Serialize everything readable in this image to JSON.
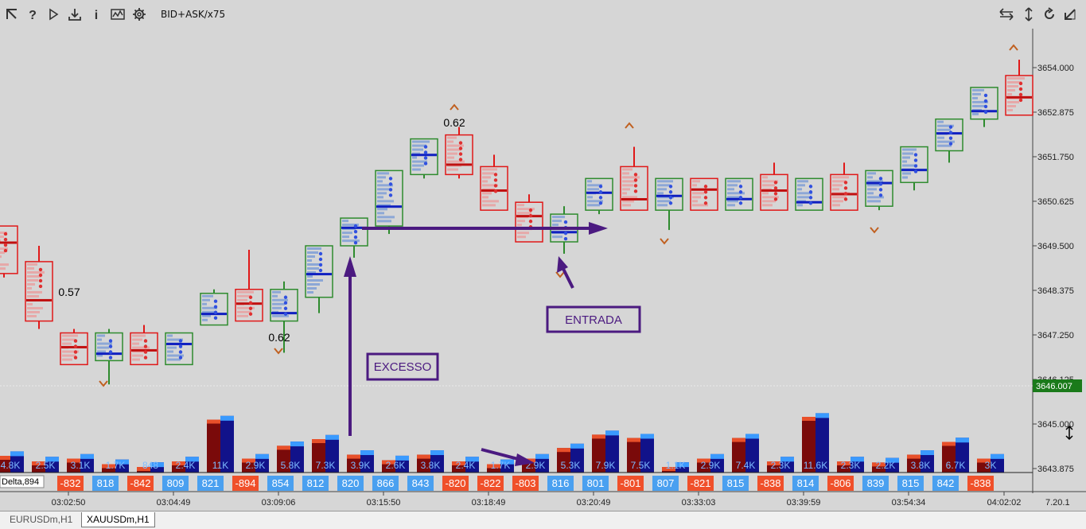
{
  "toolbar": {
    "title": "BID+ASK/x75",
    "icons": [
      "cursor-arrow-icon",
      "help-icon",
      "play-icon",
      "download-icon",
      "info-icon",
      "chart-icon",
      "gear-icon"
    ],
    "right_icons": [
      "horizontal-arrows-icon",
      "vertical-arrows-icon",
      "refresh-icon",
      "diagonal-arrow-icon"
    ]
  },
  "price_axis": {
    "labels": [
      "3654.000",
      "3652.875",
      "3651.750",
      "3650.625",
      "3649.500",
      "3648.375",
      "3647.250",
      "3646.125",
      "3645.000",
      "3643.875"
    ],
    "current_price": "3646.007",
    "current_color": "#1a7a1a"
  },
  "time_axis": {
    "labels": [
      "03:02:50",
      "03:04:49",
      "03:09:06",
      "03:15:50",
      "03:18:49",
      "03:20:49",
      "03:33:03",
      "03:39:59",
      "03:54:34",
      "04:02:02"
    ],
    "right_label": "7.20.1"
  },
  "indicator": {
    "label": "Delta,894"
  },
  "annotations": {
    "candle_labels": [
      "0.57",
      "0.62",
      "0.62"
    ],
    "boxes": [
      "EXCESSO",
      "ENTRADA"
    ]
  },
  "chart_data": {
    "type": "candlestick-footprint",
    "y_range": [
      3643.5,
      3655.0
    ],
    "candles": [
      {
        "open": 3650.0,
        "close": 3648.8,
        "high": 3650.0,
        "low": 3648.7,
        "dir": "down"
      },
      {
        "open": 3649.1,
        "close": 3647.6,
        "high": 3649.5,
        "low": 3647.4,
        "dir": "down"
      },
      {
        "open": 3647.3,
        "close": 3646.5,
        "high": 3647.4,
        "low": 3646.5,
        "dir": "down"
      },
      {
        "open": 3646.6,
        "close": 3647.3,
        "high": 3647.4,
        "low": 3646.0,
        "dir": "up"
      },
      {
        "open": 3647.3,
        "close": 3646.5,
        "high": 3647.5,
        "low": 3646.5,
        "dir": "down"
      },
      {
        "open": 3646.5,
        "close": 3647.3,
        "high": 3647.3,
        "low": 3646.5,
        "dir": "up"
      },
      {
        "open": 3647.5,
        "close": 3648.3,
        "high": 3648.4,
        "low": 3647.5,
        "dir": "up"
      },
      {
        "open": 3648.4,
        "close": 3647.6,
        "high": 3649.4,
        "low": 3647.6,
        "dir": "down"
      },
      {
        "open": 3647.6,
        "close": 3648.4,
        "high": 3648.6,
        "low": 3646.8,
        "dir": "up"
      },
      {
        "open": 3648.2,
        "close": 3649.5,
        "high": 3649.5,
        "low": 3647.8,
        "dir": "up"
      },
      {
        "open": 3649.5,
        "close": 3650.2,
        "high": 3650.2,
        "low": 3649.2,
        "dir": "up"
      },
      {
        "open": 3650.0,
        "close": 3651.4,
        "high": 3651.4,
        "low": 3649.8,
        "dir": "up"
      },
      {
        "open": 3651.3,
        "close": 3652.2,
        "high": 3652.2,
        "low": 3651.2,
        "dir": "up"
      },
      {
        "open": 3652.3,
        "close": 3651.3,
        "high": 3652.5,
        "low": 3651.2,
        "dir": "down"
      },
      {
        "open": 3651.5,
        "close": 3650.4,
        "high": 3651.8,
        "low": 3650.4,
        "dir": "down"
      },
      {
        "open": 3650.6,
        "close": 3649.6,
        "high": 3650.8,
        "low": 3649.6,
        "dir": "down"
      },
      {
        "open": 3649.6,
        "close": 3650.3,
        "high": 3650.5,
        "low": 3649.3,
        "dir": "up"
      },
      {
        "open": 3650.4,
        "close": 3651.2,
        "high": 3651.2,
        "low": 3650.3,
        "dir": "up"
      },
      {
        "open": 3651.5,
        "close": 3650.4,
        "high": 3652.0,
        "low": 3650.4,
        "dir": "down"
      },
      {
        "open": 3650.4,
        "close": 3651.2,
        "high": 3651.2,
        "low": 3649.9,
        "dir": "up"
      },
      {
        "open": 3651.2,
        "close": 3650.4,
        "high": 3651.2,
        "low": 3650.4,
        "dir": "down"
      },
      {
        "open": 3650.4,
        "close": 3651.2,
        "high": 3651.2,
        "low": 3650.4,
        "dir": "up"
      },
      {
        "open": 3651.3,
        "close": 3650.4,
        "high": 3651.6,
        "low": 3650.4,
        "dir": "down"
      },
      {
        "open": 3650.4,
        "close": 3651.2,
        "high": 3651.2,
        "low": 3650.4,
        "dir": "up"
      },
      {
        "open": 3651.3,
        "close": 3650.4,
        "high": 3651.6,
        "low": 3650.4,
        "dir": "down"
      },
      {
        "open": 3650.5,
        "close": 3651.4,
        "high": 3651.4,
        "low": 3650.4,
        "dir": "up"
      },
      {
        "open": 3651.1,
        "close": 3652.0,
        "high": 3652.0,
        "low": 3650.9,
        "dir": "up"
      },
      {
        "open": 3651.9,
        "close": 3652.7,
        "high": 3652.7,
        "low": 3651.6,
        "dir": "up"
      },
      {
        "open": 3652.7,
        "close": 3653.5,
        "high": 3653.5,
        "low": 3652.5,
        "dir": "up"
      },
      {
        "open": 3653.8,
        "close": 3652.8,
        "high": 3654.2,
        "low": 3652.8,
        "dir": "down"
      }
    ],
    "delta_values": [
      "-832",
      "818",
      "-842",
      "809",
      "821",
      "-894",
      "854",
      "812",
      "820",
      "866",
      "843",
      "-820",
      "-822",
      "-803",
      "816",
      "801",
      "-801",
      "807",
      "-821",
      "815",
      "-838",
      "814",
      "-806",
      "839",
      "815",
      "842",
      "-838"
    ],
    "volume_labels": [
      "4.8K",
      "2.5K",
      "3.1K",
      "1.7K",
      "848",
      "2.4K",
      "11K",
      "2.9K",
      "5.8K",
      "7.3K",
      "3.9K",
      "2.6K",
      "3.8K",
      "2.4K",
      "1.7K",
      "2.9K",
      "5.3K",
      "7.9K",
      "7.5K",
      "1.1K",
      "2.9K",
      "7.4K",
      "2.3K",
      "11.6K",
      "2.3K",
      "2.2K",
      "3.8K",
      "6.7K",
      "3K"
    ],
    "volume_relative": [
      0.3,
      0.2,
      0.25,
      0.15,
      0.1,
      0.2,
      0.95,
      0.25,
      0.48,
      0.6,
      0.32,
      0.22,
      0.32,
      0.2,
      0.15,
      0.25,
      0.44,
      0.68,
      0.62,
      0.1,
      0.25,
      0.62,
      0.2,
      1.0,
      0.2,
      0.18,
      0.32,
      0.55,
      0.25
    ]
  }
}
